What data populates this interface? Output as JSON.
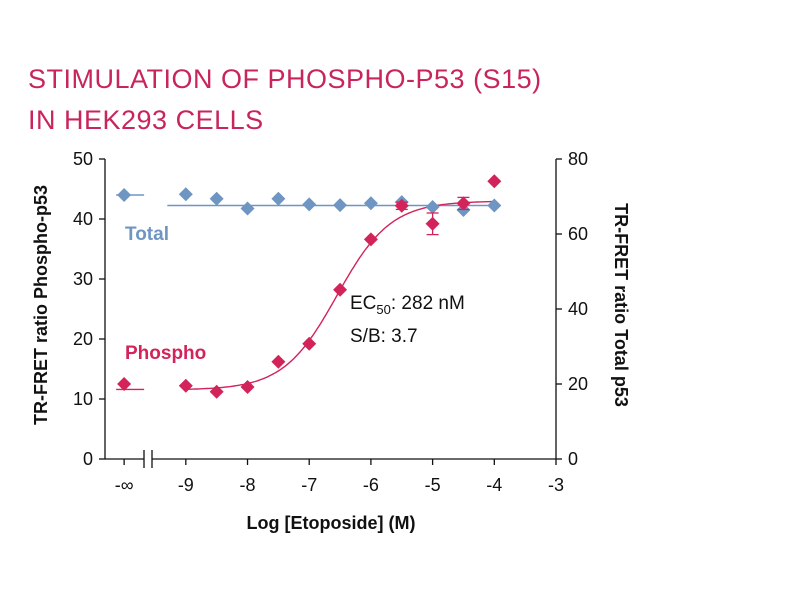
{
  "title_line1": "STIMULATION OF PHOSPHO-P53 (S15)",
  "title_line2": "IN HEK293 CELLS",
  "colors": {
    "title": "#c8255a",
    "phospho": "#d2245a",
    "total": "#6f95c2"
  },
  "chart_data": {
    "type": "scatter",
    "xlabel": "Log [Etoposide] (M)",
    "ylabel": "TR-FRET ratio Phospho-p53",
    "y2label": "TR-FRET ratio Total p53",
    "ylim": [
      0,
      50
    ],
    "y2lim": [
      0,
      80
    ],
    "xlim": [
      -9.67,
      -3
    ],
    "x_ticks": [
      -9,
      -8,
      -7,
      -6,
      -5,
      -4,
      -3
    ],
    "x_tick_labels": [
      "-9",
      "-8",
      "-7",
      "-6",
      "-5",
      "-4",
      "-3"
    ],
    "x_break_label": "-∞",
    "y_ticks": [
      0,
      10,
      20,
      30,
      40,
      50
    ],
    "y_tick_labels": [
      "0",
      "10",
      "20",
      "30",
      "40",
      "50"
    ],
    "y2_ticks": [
      0,
      20,
      40,
      60,
      80
    ],
    "y2_tick_labels": [
      "0",
      "20",
      "40",
      "60",
      "80"
    ],
    "grid": false,
    "series": [
      {
        "name": "Phospho",
        "axis": "left",
        "x": [
          "-∞",
          -9,
          -8.5,
          -8,
          -7.5,
          -7,
          -6.5,
          -6,
          -5.5,
          -5,
          -4.5,
          -4
        ],
        "y": [
          12.5,
          12.2,
          11.2,
          12.0,
          16.2,
          19.2,
          28.2,
          36.6,
          42.2,
          39.2,
          42.6,
          46.3
        ],
        "error": [
          0,
          0,
          0,
          0,
          0,
          0,
          0,
          0,
          0.6,
          1.8,
          1.0,
          0
        ],
        "fit": {
          "bottom": 11.5,
          "top": 43.0,
          "log_ec50": -6.55,
          "hill": 1.0
        }
      },
      {
        "name": "Total",
        "axis": "right",
        "x": [
          "-∞",
          -9,
          -8.5,
          -8,
          -7.5,
          -7,
          -6.5,
          -6,
          -5.5,
          -5,
          -4.5,
          -4
        ],
        "y": [
          70.4,
          70.6,
          69.4,
          66.8,
          69.4,
          67.9,
          67.7,
          68.2,
          68.5,
          67.2,
          66.4,
          67.6
        ],
        "fit_level": 67.6
      }
    ],
    "annotations": {
      "ec50_prefix": "EC",
      "ec50_sub": "50",
      "ec50_value": ": 282 nM",
      "sb": "S/B: 3.7"
    }
  }
}
